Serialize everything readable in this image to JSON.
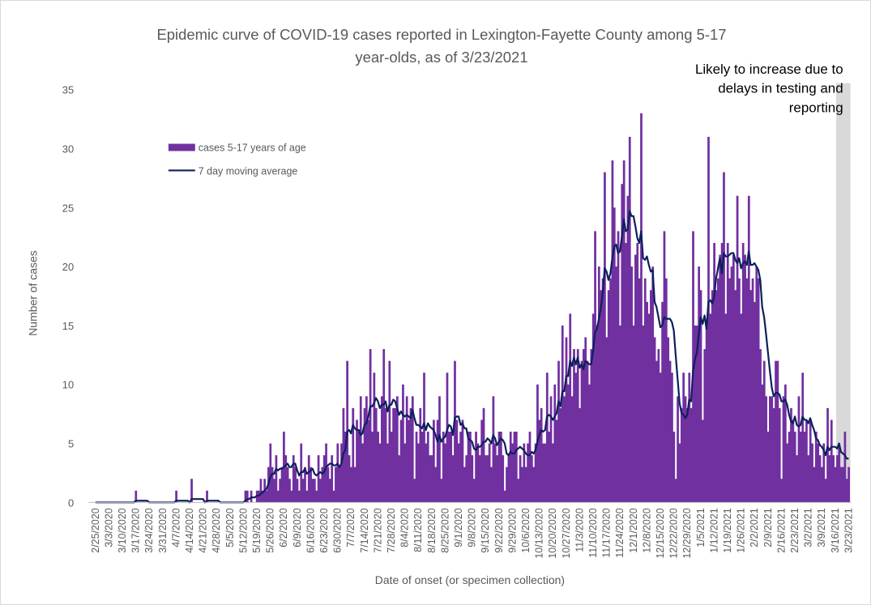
{
  "chart_data": {
    "type": "bar",
    "title": "Epidemic curve of COVID-19 cases reported in Lexington-Fayette County among 5-17 year-olds, as of 3/23/2021",
    "title_lines": [
      "Epidemic curve of COVID-19 cases reported in Lexington-Fayette County among 5-17",
      "year-olds, as of 3/23/2021"
    ],
    "xlabel": "Date of onset (or specimen collection)",
    "ylabel": "Number of cases",
    "ylim": [
      0,
      35
    ],
    "yticks": [
      0,
      5,
      10,
      15,
      20,
      25,
      30,
      35
    ],
    "grid": false,
    "legend_position": "top-left",
    "annotation": {
      "lines": [
        "Likely to increase due to",
        "delays in testing and",
        "reporting"
      ],
      "shaded_from": "3/17/2021",
      "shaded_to": "3/23/2021"
    },
    "x_start": "2/25/2020",
    "x_end": "3/23/2021",
    "x_tick_labels": [
      "2/25/2020",
      "3/3/2020",
      "3/10/2020",
      "3/17/2020",
      "3/24/2020",
      "3/31/2020",
      "4/7/2020",
      "4/14/2020",
      "4/21/2020",
      "4/28/2020",
      "5/5/2020",
      "5/12/2020",
      "5/19/2020",
      "5/26/2020",
      "6/2/2020",
      "6/9/2020",
      "6/16/2020",
      "6/23/2020",
      "6/30/2020",
      "7/7/2020",
      "7/14/2020",
      "7/21/2020",
      "7/28/2020",
      "8/4/2020",
      "8/11/2020",
      "8/18/2020",
      "8/25/2020",
      "9/1/2020",
      "9/8/2020",
      "9/15/2020",
      "9/22/2020",
      "9/29/2020",
      "10/6/2020",
      "10/13/2020",
      "10/20/2020",
      "10/27/2020",
      "11/3/2020",
      "11/10/2020",
      "11/17/2020",
      "11/24/2020",
      "12/1/2020",
      "12/8/2020",
      "12/15/2020",
      "12/22/2020",
      "12/29/2020",
      "1/5/2021",
      "1/12/2021",
      "1/19/2021",
      "1/26/2021",
      "2/2/2021",
      "2/9/2021",
      "2/16/2021",
      "2/23/2021",
      "3/2/2021",
      "3/9/2021",
      "3/16/2021",
      "3/23/2021"
    ],
    "series": [
      {
        "name": "cases 5-17 years of age",
        "kind": "bar",
        "color": "#7030a0",
        "daily_values": [
          0,
          0,
          0,
          0,
          0,
          0,
          0,
          0,
          0,
          0,
          0,
          0,
          0,
          0,
          0,
          0,
          0,
          0,
          0,
          0,
          0,
          1,
          0,
          0,
          0,
          0,
          0,
          0,
          0,
          0,
          0,
          0,
          0,
          0,
          0,
          0,
          0,
          0,
          0,
          0,
          0,
          0,
          1,
          0,
          0,
          0,
          0,
          0,
          0,
          0,
          2,
          0,
          0,
          0,
          0,
          0,
          0,
          0,
          1,
          0,
          0,
          0,
          0,
          0,
          0,
          0,
          0,
          0,
          0,
          0,
          0,
          0,
          0,
          0,
          0,
          0,
          0,
          0,
          1,
          1,
          0,
          1,
          0,
          0,
          1,
          1,
          2,
          1,
          2,
          1,
          3,
          5,
          3,
          2,
          4,
          1,
          2,
          3,
          6,
          4,
          3,
          2,
          1,
          4,
          3,
          2,
          1,
          5,
          2,
          3,
          1,
          4,
          3,
          2,
          2,
          1,
          4,
          2,
          3,
          4,
          5,
          3,
          2,
          4,
          1,
          3,
          5,
          3,
          5,
          8,
          6,
          12,
          4,
          3,
          8,
          3,
          7,
          6,
          9,
          5,
          8,
          9,
          7,
          13,
          6,
          11,
          8,
          6,
          5,
          9,
          13,
          8,
          5,
          12,
          6,
          8,
          8,
          9,
          4,
          7,
          10,
          5,
          9,
          7,
          8,
          9,
          2,
          6,
          5,
          8,
          6,
          11,
          5,
          6,
          4,
          4,
          7,
          3,
          7,
          9,
          2,
          6,
          5,
          11,
          6,
          6,
          4,
          12,
          7,
          5,
          6,
          7,
          3,
          4,
          6,
          6,
          4,
          2,
          6,
          5,
          4,
          7,
          8,
          4,
          4,
          5,
          3,
          9,
          5,
          4,
          6,
          6,
          4,
          1,
          3,
          4,
          6,
          5,
          6,
          6,
          2,
          4,
          3,
          5,
          3,
          5,
          6,
          4,
          3,
          5,
          10,
          7,
          8,
          5,
          5,
          11,
          6,
          9,
          5,
          10,
          7,
          12,
          8,
          15,
          9,
          14,
          10,
          16,
          9,
          13,
          11,
          13,
          8,
          12,
          13,
          14,
          12,
          10,
          13,
          16,
          23,
          15,
          20,
          18,
          19,
          28,
          14,
          18,
          19,
          29,
          25,
          20,
          23,
          15,
          27,
          29,
          22,
          26,
          31,
          20,
          15,
          21,
          22,
          19,
          33,
          15,
          19,
          17,
          16,
          18,
          20,
          14,
          12,
          13,
          11,
          17,
          23,
          19,
          14,
          12,
          11,
          6,
          2,
          9,
          5,
          8,
          11,
          9,
          8,
          11,
          8,
          23,
          15,
          15,
          20,
          18,
          7,
          13,
          15,
          31,
          16,
          18,
          22,
          18,
          19,
          21,
          22,
          28,
          16,
          22,
          19,
          20,
          21,
          18,
          26,
          19,
          16,
          22,
          21,
          19,
          26,
          18,
          19,
          17,
          20,
          19,
          13,
          10,
          12,
          9,
          6,
          9,
          9,
          8,
          12,
          12,
          8,
          2,
          9,
          10,
          5,
          6,
          8,
          7,
          6,
          4,
          9,
          6,
          11,
          6,
          7,
          4,
          7,
          5,
          3,
          6,
          5,
          4,
          3,
          5,
          2,
          8,
          4,
          7,
          4,
          3,
          4,
          5,
          3,
          3,
          6,
          2,
          3,
          2,
          1
        ]
      },
      {
        "name": "7 day moving average",
        "kind": "line",
        "color": "#0d1f5c"
      }
    ]
  }
}
